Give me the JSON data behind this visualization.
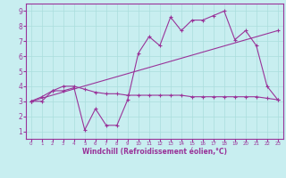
{
  "background_color": "#c8eef0",
  "line_color": "#993399",
  "grid_color": "#aadddd",
  "xlim": [
    -0.5,
    23.5
  ],
  "ylim": [
    0.5,
    9.5
  ],
  "xticks": [
    0,
    1,
    2,
    3,
    4,
    5,
    6,
    7,
    8,
    9,
    10,
    11,
    12,
    13,
    14,
    15,
    16,
    17,
    18,
    19,
    20,
    21,
    22,
    23
  ],
  "yticks": [
    1,
    2,
    3,
    4,
    5,
    6,
    7,
    8,
    9
  ],
  "xlabel": "Windchill (Refroidissement éolien,°C)",
  "line1_x": [
    0,
    1,
    2,
    3,
    4,
    5,
    6,
    7,
    8,
    9,
    10,
    11,
    12,
    13,
    14,
    15,
    16,
    17,
    18,
    19,
    20,
    21,
    22,
    23
  ],
  "line1_y": [
    3.0,
    3.0,
    3.7,
    3.7,
    3.9,
    1.1,
    2.5,
    1.4,
    1.4,
    3.1,
    6.2,
    7.3,
    6.7,
    8.6,
    7.7,
    8.4,
    8.4,
    8.7,
    9.0,
    7.1,
    7.7,
    6.7,
    4.0,
    3.1
  ],
  "line2_x": [
    0,
    1,
    2,
    3,
    4,
    5,
    6,
    7,
    8,
    9,
    10,
    11,
    12,
    13,
    14,
    15,
    16,
    17,
    18,
    19,
    20,
    21,
    22,
    23
  ],
  "line2_y": [
    3.0,
    3.3,
    3.7,
    4.0,
    4.0,
    3.8,
    3.6,
    3.5,
    3.5,
    3.4,
    3.4,
    3.4,
    3.4,
    3.4,
    3.4,
    3.3,
    3.3,
    3.3,
    3.3,
    3.3,
    3.3,
    3.3,
    3.2,
    3.1
  ],
  "line3_x": [
    0,
    23
  ],
  "line3_y": [
    3.0,
    7.7
  ]
}
